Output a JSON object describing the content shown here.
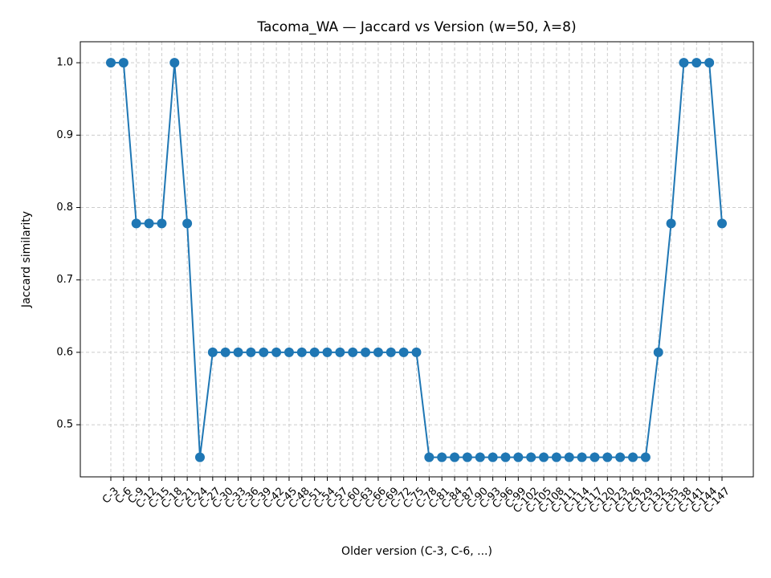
{
  "chart_data": {
    "type": "line",
    "title": "Tacoma_WA — Jaccard vs Version (w=50, λ=8)",
    "xlabel": "Older version (C-3, C-6, ...)",
    "ylabel": "Jaccard similarity",
    "categories": [
      "C-3",
      "C-6",
      "C-9",
      "C-12",
      "C-15",
      "C-18",
      "C-21",
      "C-24",
      "C-27",
      "C-30",
      "C-33",
      "C-36",
      "C-39",
      "C-42",
      "C-45",
      "C-48",
      "C-51",
      "C-54",
      "C-57",
      "C-60",
      "C-63",
      "C-66",
      "C-69",
      "C-72",
      "C-75",
      "C-78",
      "C-81",
      "C-84",
      "C-87",
      "C-90",
      "C-93",
      "C-96",
      "C-99",
      "C-102",
      "C-105",
      "C-108",
      "C-111",
      "C-114",
      "C-117",
      "C-120",
      "C-123",
      "C-126",
      "C-129",
      "C-132",
      "C-135",
      "C-138",
      "C-141",
      "C-144",
      "C-147"
    ],
    "series": [
      {
        "name": "Jaccard",
        "color": "#1f77b4",
        "values": [
          1.0,
          1.0,
          0.778,
          0.778,
          0.778,
          1.0,
          0.778,
          0.455,
          0.6,
          0.6,
          0.6,
          0.6,
          0.6,
          0.6,
          0.6,
          0.6,
          0.6,
          0.6,
          0.6,
          0.6,
          0.6,
          0.6,
          0.6,
          0.6,
          0.6,
          0.455,
          0.455,
          0.455,
          0.455,
          0.455,
          0.455,
          0.455,
          0.455,
          0.455,
          0.455,
          0.455,
          0.455,
          0.455,
          0.455,
          0.455,
          0.455,
          0.455,
          0.455,
          0.6,
          0.778,
          1.0,
          1.0,
          1.0,
          0.778
        ]
      }
    ],
    "ylim": [
      0.428,
      1.029
    ],
    "yticks": [
      {
        "value": 0.5,
        "label": "0.5"
      },
      {
        "value": 0.6,
        "label": "0.6"
      },
      {
        "value": 0.7,
        "label": "0.7"
      },
      {
        "value": 0.8,
        "label": "0.8"
      },
      {
        "value": 0.9,
        "label": "0.9"
      },
      {
        "value": 1.0,
        "label": "1.0"
      }
    ],
    "grid": true
  }
}
